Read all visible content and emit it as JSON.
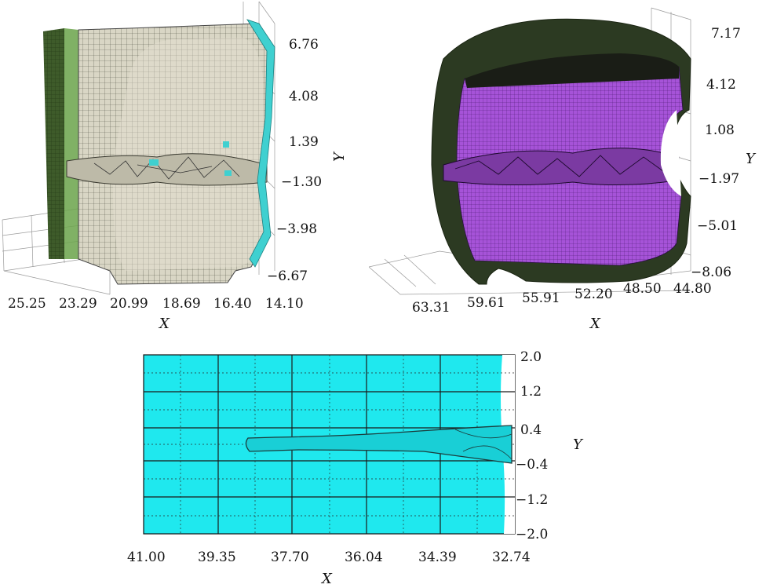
{
  "panels": [
    {
      "y_ticks": [
        "6.76",
        "4.08",
        "1.39",
        "−1.30",
        "−3.98",
        "−6.67"
      ],
      "x_ticks": [
        "25.25",
        "23.29",
        "20.99",
        "18.69",
        "16.40",
        "14.10"
      ],
      "x_label": "X",
      "y_label": "Y"
    },
    {
      "y_ticks": [
        "7.17",
        "4.12",
        "1.08",
        "−1.97",
        "−5.01",
        "−8.06"
      ],
      "x_ticks": [
        "63.31",
        "59.61",
        "55.91",
        "52.20",
        "48.50",
        "44.80"
      ],
      "x_label": "X",
      "y_label": "Y"
    },
    {
      "y_ticks": [
        "2.0",
        "1.2",
        "0.4",
        "−0.4",
        "−1.2",
        "−2.0"
      ],
      "x_ticks": [
        "41.00",
        "39.35",
        "37.70",
        "36.04",
        "34.39",
        "32.74"
      ],
      "x_label": "X",
      "y_label": "Y"
    }
  ],
  "colors": {
    "concrete_mesh": "#d8d5c4",
    "cover_green": "#3d5a2a",
    "edge_cyan": "#3fd0d0",
    "inner_purple": "#a24fd6",
    "shell_dark": "#2a3520",
    "plate_cyan": "#1fe8ee"
  }
}
